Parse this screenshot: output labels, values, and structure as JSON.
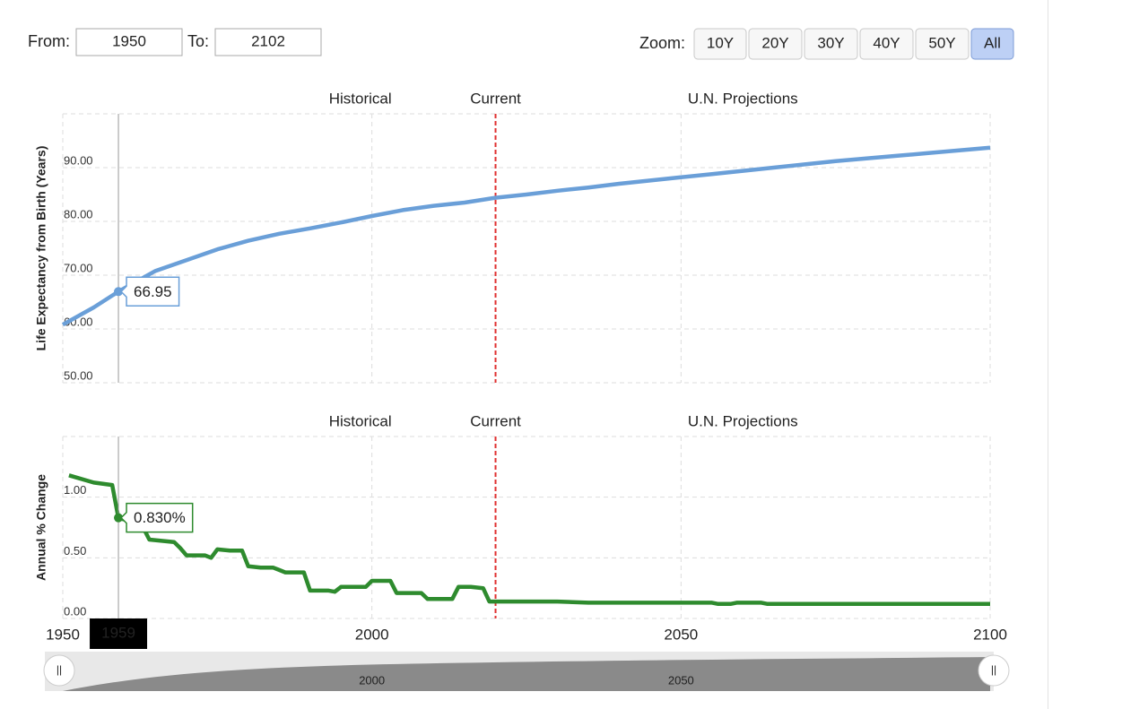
{
  "controls": {
    "from_label": "From:",
    "from": 1950,
    "to_label": "To:",
    "to": 2102,
    "zoom_label": "Zoom:",
    "zoom_buttons": [
      "10Y",
      "20Y",
      "30Y",
      "40Y",
      "50Y",
      "All"
    ]
  },
  "navigator": {
    "xticks": [
      2000,
      2050
    ]
  },
  "chart_data": [
    {
      "type": "line",
      "y_label": "Life Expectancy from Birth (Years)",
      "color": "#6a9fd8",
      "annotations": [
        "Historical",
        "Current",
        "U.N. Projections"
      ],
      "vline": {
        "x": 2020,
        "color": "#e03030"
      },
      "x": [
        1950,
        1955,
        1959,
        1960,
        1965,
        1970,
        1975,
        1980,
        1985,
        1990,
        1995,
        2000,
        2005,
        2010,
        2015,
        2020,
        2025,
        2030,
        2035,
        2040,
        2045,
        2050,
        2055,
        2060,
        2065,
        2070,
        2075,
        2080,
        2085,
        2090,
        2095,
        2100
      ],
      "values": [
        60.8,
        64.0,
        66.95,
        67.6,
        70.8,
        72.8,
        74.8,
        76.4,
        77.7,
        78.7,
        79.8,
        81.0,
        82.1,
        82.9,
        83.5,
        84.4,
        85.0,
        85.7,
        86.3,
        87.0,
        87.6,
        88.2,
        88.8,
        89.4,
        90.0,
        90.6,
        91.2,
        91.7,
        92.2,
        92.7,
        93.2,
        93.7
      ],
      "xlim": [
        1950,
        2100
      ],
      "ylim": [
        50,
        100
      ],
      "yticks": [
        {
          "value": 50,
          "label": "50.00"
        },
        {
          "value": 60,
          "label": "60.00"
        },
        {
          "value": 70,
          "label": "70.00"
        },
        {
          "value": 80,
          "label": "80.00"
        },
        {
          "value": 90,
          "label": "90.00"
        }
      ],
      "grid": true,
      "tooltip": {
        "x": 1959,
        "value": 66.95
      }
    },
    {
      "type": "line",
      "y_label": "Annual % Change",
      "color": "#2e8b2e",
      "annotations": [
        "Historical",
        "Current",
        "U.N. Projections"
      ],
      "vline": {
        "x": 2020,
        "color": "#e03030"
      },
      "x": [
        1951,
        1955,
        1958,
        1959,
        1961,
        1962,
        1963,
        1964,
        1968,
        1969,
        1970,
        1973,
        1974,
        1975,
        1977,
        1979,
        1980,
        1982,
        1984,
        1985,
        1986,
        1989,
        1990,
        1993,
        1994,
        1995,
        1999,
        2000,
        2003,
        2004,
        2008,
        2009,
        2013,
        2014,
        2016,
        2018,
        2019,
        2030,
        2035,
        2055,
        2056,
        2058,
        2059,
        2063,
        2064,
        2100
      ],
      "values": [
        1.18,
        1.12,
        1.1,
        0.83,
        0.8,
        0.77,
        0.75,
        0.65,
        0.63,
        0.58,
        0.52,
        0.52,
        0.5,
        0.57,
        0.56,
        0.56,
        0.43,
        0.42,
        0.42,
        0.4,
        0.38,
        0.38,
        0.23,
        0.23,
        0.22,
        0.26,
        0.26,
        0.31,
        0.31,
        0.21,
        0.21,
        0.16,
        0.16,
        0.26,
        0.26,
        0.25,
        0.14,
        0.14,
        0.13,
        0.13,
        0.12,
        0.12,
        0.13,
        0.13,
        0.12,
        0.12
      ],
      "xlim": [
        1950,
        2100
      ],
      "ylim": [
        0,
        1.5
      ],
      "yticks": [
        {
          "value": 0,
          "label": "0.00"
        },
        {
          "value": 0.5,
          "label": "0.50"
        },
        {
          "value": 1.0,
          "label": "1.00"
        }
      ],
      "xticks": [
        1950,
        2000,
        2050,
        2100
      ],
      "grid": true,
      "tooltip": {
        "x": 1959,
        "value": 0.83,
        "label": "0.830%"
      }
    }
  ]
}
